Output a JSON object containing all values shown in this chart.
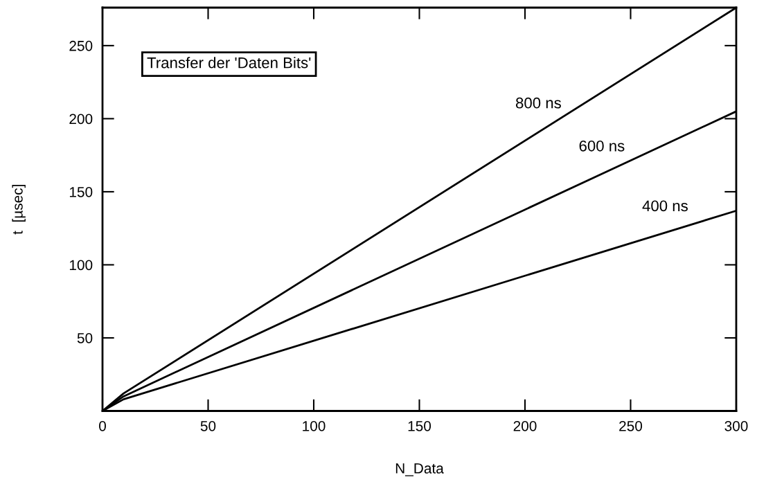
{
  "chart_data": {
    "type": "line",
    "xlabel": "N_Data",
    "ylabel": "t  [µsec]",
    "xlim": [
      0,
      300
    ],
    "xticks": [
      0,
      50,
      100,
      150,
      200,
      250,
      300
    ],
    "ylim": [
      0,
      276
    ],
    "yticks": [
      {
        "value": 0,
        "label": null
      },
      50,
      100,
      150,
      200,
      250
    ],
    "grid": false,
    "legend": false,
    "marker": "none",
    "line_style": "solid",
    "x": [
      0,
      10,
      300
    ],
    "series": [
      {
        "name": "800 ns",
        "color": "#000000",
        "values": [
          0,
          12,
          276
        ]
      },
      {
        "name": "600 ns",
        "color": "#000000",
        "values": [
          0,
          10,
          205
        ]
      },
      {
        "name": "400 ns",
        "color": "#000000",
        "values": [
          0,
          8,
          137
        ]
      }
    ],
    "annotations": [
      "Transfer der 'Daten Bits'"
    ]
  }
}
